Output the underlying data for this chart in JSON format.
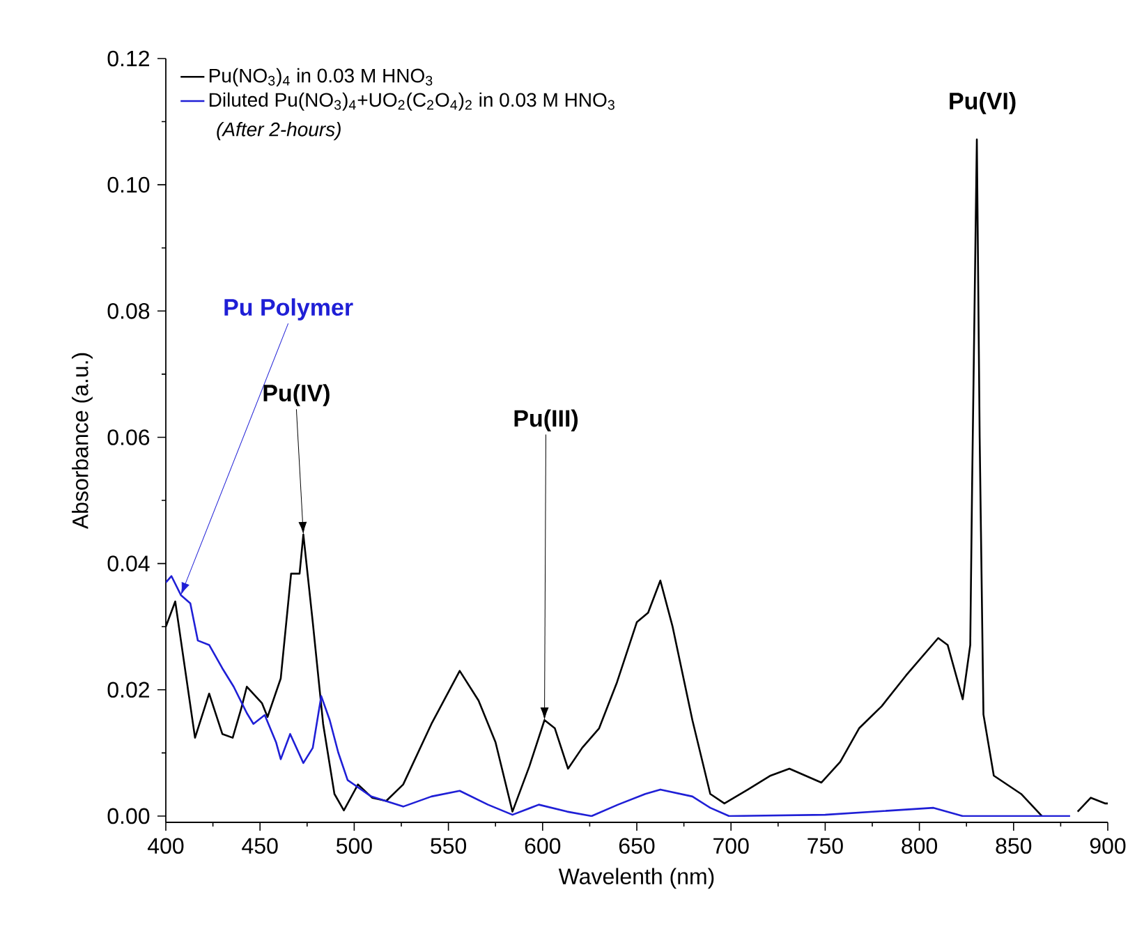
{
  "chart_data": {
    "type": "line",
    "xlabel": "Wavelenth (nm)",
    "ylabel": "Absorbance (a.u.)",
    "xlim": [
      400,
      900
    ],
    "xticks": [
      400,
      450,
      500,
      550,
      600,
      650,
      700,
      750,
      800,
      850,
      900
    ],
    "ylim": [
      -0.001,
      0.12
    ],
    "yticks": [
      {
        "value": 0,
        "label": "0.00"
      },
      {
        "value": 0.02,
        "label": "0.02"
      },
      {
        "value": 0.04,
        "label": "0.04"
      },
      {
        "value": 0.06,
        "label": "0.06"
      },
      {
        "value": 0.08,
        "label": "0.08"
      },
      {
        "value": 0.1,
        "label": "0.10"
      },
      {
        "value": 0.12,
        "label": "0.12"
      }
    ],
    "legend": "top left",
    "grid": false,
    "marker": "none",
    "line_style": "solid",
    "annotations": [
      {
        "text": "Pu Polymer",
        "x": 408,
        "y": 0.035
      },
      {
        "text": "Pu(IV)",
        "x": 473,
        "y": 0.0446
      },
      {
        "text": "Pu(III)",
        "x": 601,
        "y": 0.0152
      },
      {
        "text": "Pu(VI)",
        "x": 830.5,
        "y": 0.1072
      },
      "(After 2-hours)"
    ],
    "series": [
      {
        "name": "Pu(NO$_{3}$)$_{4}$ in 0.03 M HNO$_{3}$",
        "color": "#000000",
        "x": [
          400,
          405,
          415.5,
          423,
          430,
          435.5,
          440,
          443,
          451,
          454,
          461,
          466.5,
          471,
          473,
          478,
          483.5,
          489.5,
          494.5,
          502,
          509.5,
          517,
          526,
          541,
          556,
          566,
          575,
          584,
          593,
          601,
          606.5,
          613.5,
          621,
          630,
          639.5,
          650,
          656,
          662.5,
          669,
          679.5,
          689,
          696.5,
          709,
          721,
          731,
          741,
          748,
          758,
          768,
          780,
          793,
          810,
          815,
          823,
          827,
          828,
          830.5,
          832,
          834,
          839.5,
          854,
          865,
          870,
          884,
          891,
          898.5,
          900
        ],
        "values": [
          0.03,
          0.034,
          0.0124,
          0.0194,
          0.013,
          0.0124,
          0.017,
          0.0205,
          0.0179,
          0.0157,
          0.0218,
          0.0384,
          0.0384,
          0.0446,
          0.0307,
          0.0146,
          0.0035,
          0.0009,
          0.005,
          0.0029,
          0.0024,
          0.005,
          0.0146,
          0.023,
          0.0183,
          0.0117,
          0.0007,
          0.0079,
          0.0152,
          0.0139,
          0.0075,
          0.0108,
          0.0139,
          0.0212,
          0.0307,
          0.0322,
          0.0373,
          0.03,
          0.0152,
          0.0035,
          0.002,
          0.0042,
          0.0064,
          0.0075,
          0.0062,
          0.0053,
          0.0086,
          0.0139,
          0.0174,
          0.0223,
          0.0282,
          0.0271,
          0.0185,
          0.0271,
          0.0527,
          0.1072,
          0.06,
          0.0161,
          0.0064,
          0.0035,
          0,
          null,
          0.0007,
          0.0029,
          0.002,
          0.002
        ]
      },
      {
        "name": "Diluted Pu(NO$_{3}$)$_{4}$+UO$_{2}$(C$_{2}$O$_{4}$)$_{2}$ in 0.03 M HNO$_{3}$",
        "color": "#1f1fd6",
        "x": [
          400,
          403,
          408,
          413,
          417,
          423,
          430,
          436,
          443,
          446.5,
          452.5,
          458.5,
          461,
          466,
          473,
          478,
          482.5,
          487,
          491.5,
          496.5,
          509,
          526,
          541,
          556,
          571,
          584,
          598,
          613,
          626,
          640,
          654.5,
          662.5,
          679.5,
          689,
          699,
          750,
          807.5,
          823,
          850,
          880
        ],
        "values": [
          0.037,
          0.038,
          0.035,
          0.0337,
          0.0278,
          0.0271,
          0.0234,
          0.0205,
          0.0163,
          0.0146,
          0.016,
          0.0117,
          0.009,
          0.013,
          0.0084,
          0.0108,
          0.019,
          0.0152,
          0.0101,
          0.0057,
          0.0031,
          0.0015,
          0.0031,
          0.004,
          0.0018,
          0.0002,
          0.0018,
          0.0007,
          0,
          0.0018,
          0.0035,
          0.0042,
          0.0031,
          0.0013,
          0,
          0.0002,
          0.0013,
          0,
          0,
          0
        ]
      }
    ]
  }
}
